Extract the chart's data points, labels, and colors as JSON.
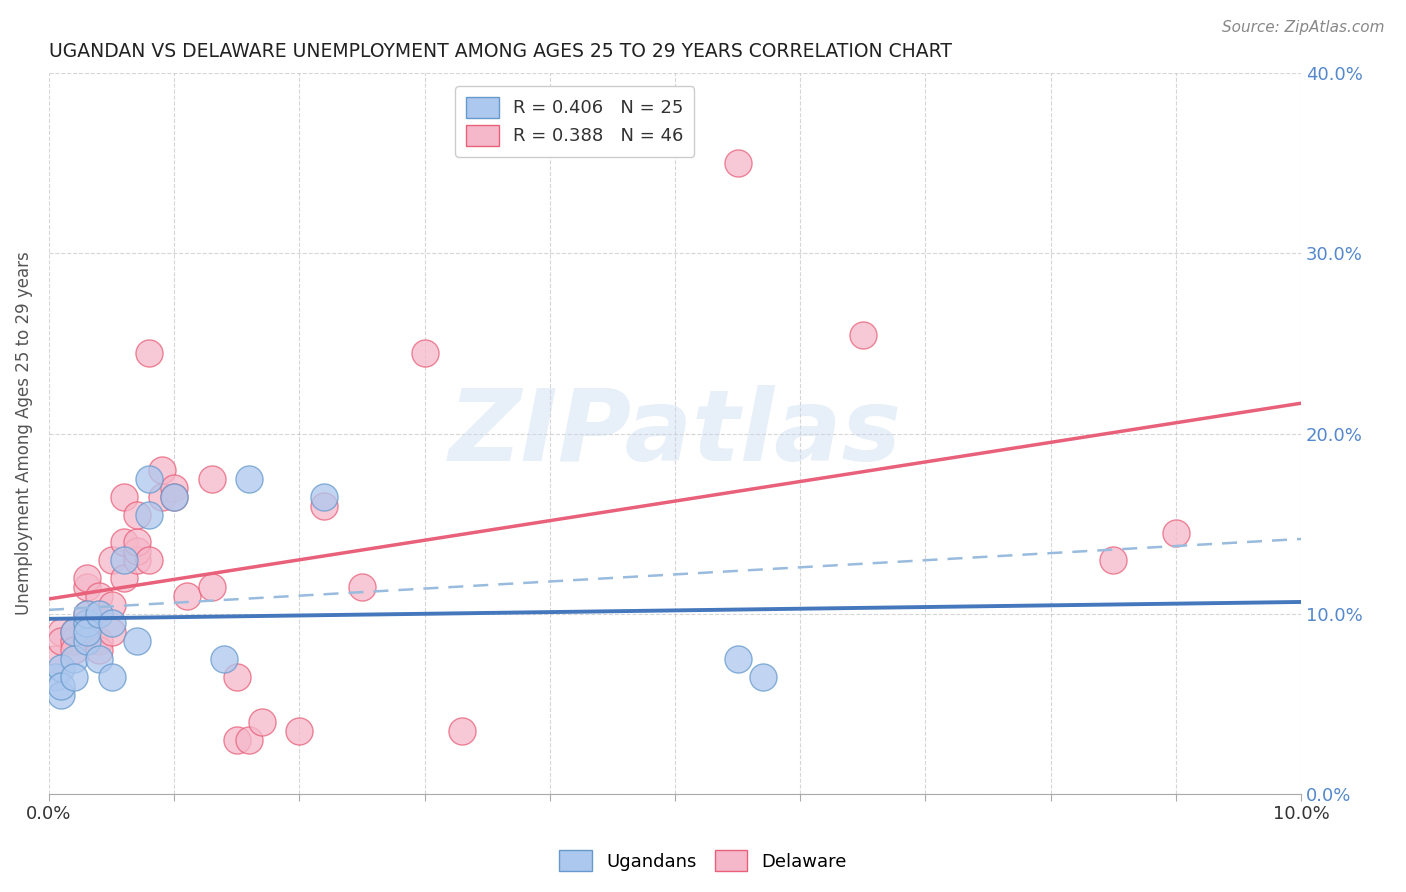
{
  "title": "UGANDAN VS DELAWARE UNEMPLOYMENT AMONG AGES 25 TO 29 YEARS CORRELATION CHART",
  "source": "Source: ZipAtlas.com",
  "ylabel": "Unemployment Among Ages 25 to 29 years",
  "xlim": [
    -0.001,
    0.101
  ],
  "ylim": [
    -0.01,
    0.41
  ],
  "plot_xlim": [
    0.0,
    0.1
  ],
  "plot_ylim": [
    0.0,
    0.4
  ],
  "xticks": [
    0.0,
    0.01,
    0.02,
    0.03,
    0.04,
    0.05,
    0.06,
    0.07,
    0.08,
    0.09,
    0.1
  ],
  "yticks": [
    0.0,
    0.1,
    0.2,
    0.3,
    0.4
  ],
  "ugandan_R": 0.406,
  "ugandan_N": 25,
  "delaware_R": 0.388,
  "delaware_N": 46,
  "ugandan_color": "#adc8ee",
  "delaware_color": "#f5b8ca",
  "ugandan_edge_color": "#6699cc",
  "delaware_edge_color": "#e8607a",
  "ugandan_line_color": "#4477bb",
  "delaware_line_color": "#e8607a",
  "dashed_line_color": "#99bbdd",
  "title_color": "#222222",
  "axis_label_color": "#555555",
  "right_tick_color": "#5588cc",
  "background_color": "#ffffff",
  "grid_color": "#bbbbbb",
  "watermark_color": "#c5d8ee",
  "ugandan_x": [
    0.0005,
    0.001,
    0.001,
    0.001,
    0.002,
    0.002,
    0.002,
    0.003,
    0.003,
    0.003,
    0.003,
    0.004,
    0.004,
    0.005,
    0.005,
    0.006,
    0.007,
    0.008,
    0.008,
    0.01,
    0.014,
    0.016,
    0.022,
    0.055,
    0.057
  ],
  "ugandan_y": [
    0.065,
    0.07,
    0.055,
    0.06,
    0.075,
    0.09,
    0.065,
    0.085,
    0.095,
    0.1,
    0.09,
    0.075,
    0.1,
    0.095,
    0.065,
    0.13,
    0.085,
    0.155,
    0.175,
    0.165,
    0.075,
    0.175,
    0.165,
    0.075,
    0.065
  ],
  "delaware_x": [
    0.0005,
    0.001,
    0.001,
    0.002,
    0.002,
    0.002,
    0.003,
    0.003,
    0.003,
    0.003,
    0.004,
    0.004,
    0.004,
    0.004,
    0.005,
    0.005,
    0.005,
    0.006,
    0.006,
    0.006,
    0.007,
    0.007,
    0.007,
    0.007,
    0.008,
    0.008,
    0.009,
    0.009,
    0.01,
    0.01,
    0.011,
    0.013,
    0.013,
    0.015,
    0.015,
    0.016,
    0.017,
    0.02,
    0.022,
    0.025,
    0.03,
    0.033,
    0.055,
    0.065,
    0.085,
    0.09
  ],
  "delaware_y": [
    0.075,
    0.09,
    0.085,
    0.085,
    0.09,
    0.08,
    0.1,
    0.095,
    0.115,
    0.12,
    0.085,
    0.1,
    0.11,
    0.08,
    0.09,
    0.105,
    0.13,
    0.12,
    0.14,
    0.165,
    0.13,
    0.135,
    0.14,
    0.155,
    0.13,
    0.245,
    0.165,
    0.18,
    0.17,
    0.165,
    0.11,
    0.175,
    0.115,
    0.065,
    0.03,
    0.03,
    0.04,
    0.035,
    0.16,
    0.115,
    0.245,
    0.035,
    0.35,
    0.255,
    0.13,
    0.145
  ]
}
